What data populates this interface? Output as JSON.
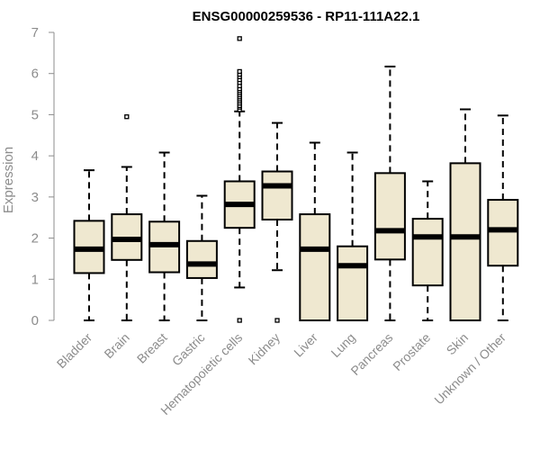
{
  "chart_data": {
    "type": "boxplot",
    "title": "ENSG00000259536 - RP11-111A22.1",
    "xlabel": "",
    "ylabel": "Expression",
    "ylim": [
      0,
      7
    ],
    "yticks": [
      0,
      1,
      2,
      3,
      4,
      5,
      6,
      7
    ],
    "colors": {
      "box_fill": "#efe8d0",
      "stroke": "#000000",
      "axis": "#8c8c8c",
      "text": "#8c8c8c"
    },
    "categories": [
      "Bladder",
      "Brain",
      "Breast",
      "Gastric",
      "Hematopoietic cells",
      "Kidney",
      "Liver",
      "Lung",
      "Pancreas",
      "Prostate",
      "Skin",
      "Unknown / Other"
    ],
    "boxes": [
      {
        "name": "Bladder",
        "whisker_low": 0.0,
        "q1": 1.15,
        "median": 1.73,
        "q3": 2.42,
        "whisker_high": 3.65,
        "outliers": []
      },
      {
        "name": "Brain",
        "whisker_low": 0.0,
        "q1": 1.47,
        "median": 1.97,
        "q3": 2.58,
        "whisker_high": 3.73,
        "outliers": [
          4.95
        ]
      },
      {
        "name": "Breast",
        "whisker_low": 0.0,
        "q1": 1.17,
        "median": 1.84,
        "q3": 2.4,
        "whisker_high": 4.08,
        "outliers": []
      },
      {
        "name": "Gastric",
        "whisker_low": 0.0,
        "q1": 1.03,
        "median": 1.37,
        "q3": 1.93,
        "whisker_high": 3.03,
        "outliers": []
      },
      {
        "name": "Hematopoietic cells",
        "whisker_low": 0.8,
        "q1": 2.25,
        "median": 2.82,
        "q3": 3.38,
        "whisker_high": 5.08,
        "outliers": [
          0.0,
          5.12,
          5.18,
          5.22,
          5.28,
          5.33,
          5.38,
          5.43,
          5.48,
          5.53,
          5.58,
          5.63,
          5.7,
          5.78,
          5.85,
          5.92,
          5.98,
          6.05,
          6.85
        ]
      },
      {
        "name": "Kidney",
        "whisker_low": 1.22,
        "q1": 2.45,
        "median": 3.27,
        "q3": 3.62,
        "whisker_high": 4.8,
        "outliers": [
          0.0
        ]
      },
      {
        "name": "Liver",
        "whisker_low": 0.0,
        "q1": 0.0,
        "median": 1.73,
        "q3": 2.58,
        "whisker_high": 4.32,
        "outliers": []
      },
      {
        "name": "Lung",
        "whisker_low": 0.0,
        "q1": 0.0,
        "median": 1.33,
        "q3": 1.8,
        "whisker_high": 4.08,
        "outliers": []
      },
      {
        "name": "Pancreas",
        "whisker_low": 0.0,
        "q1": 1.48,
        "median": 2.18,
        "q3": 3.58,
        "whisker_high": 6.17,
        "outliers": []
      },
      {
        "name": "Prostate",
        "whisker_low": 0.0,
        "q1": 0.85,
        "median": 2.03,
        "q3": 2.47,
        "whisker_high": 3.38,
        "outliers": []
      },
      {
        "name": "Skin",
        "whisker_low": 0.0,
        "q1": 0.0,
        "median": 2.03,
        "q3": 3.82,
        "whisker_high": 5.13,
        "outliers": []
      },
      {
        "name": "Unknown / Other",
        "whisker_low": 0.0,
        "q1": 1.33,
        "median": 2.2,
        "q3": 2.93,
        "whisker_high": 4.98,
        "outliers": []
      }
    ]
  }
}
